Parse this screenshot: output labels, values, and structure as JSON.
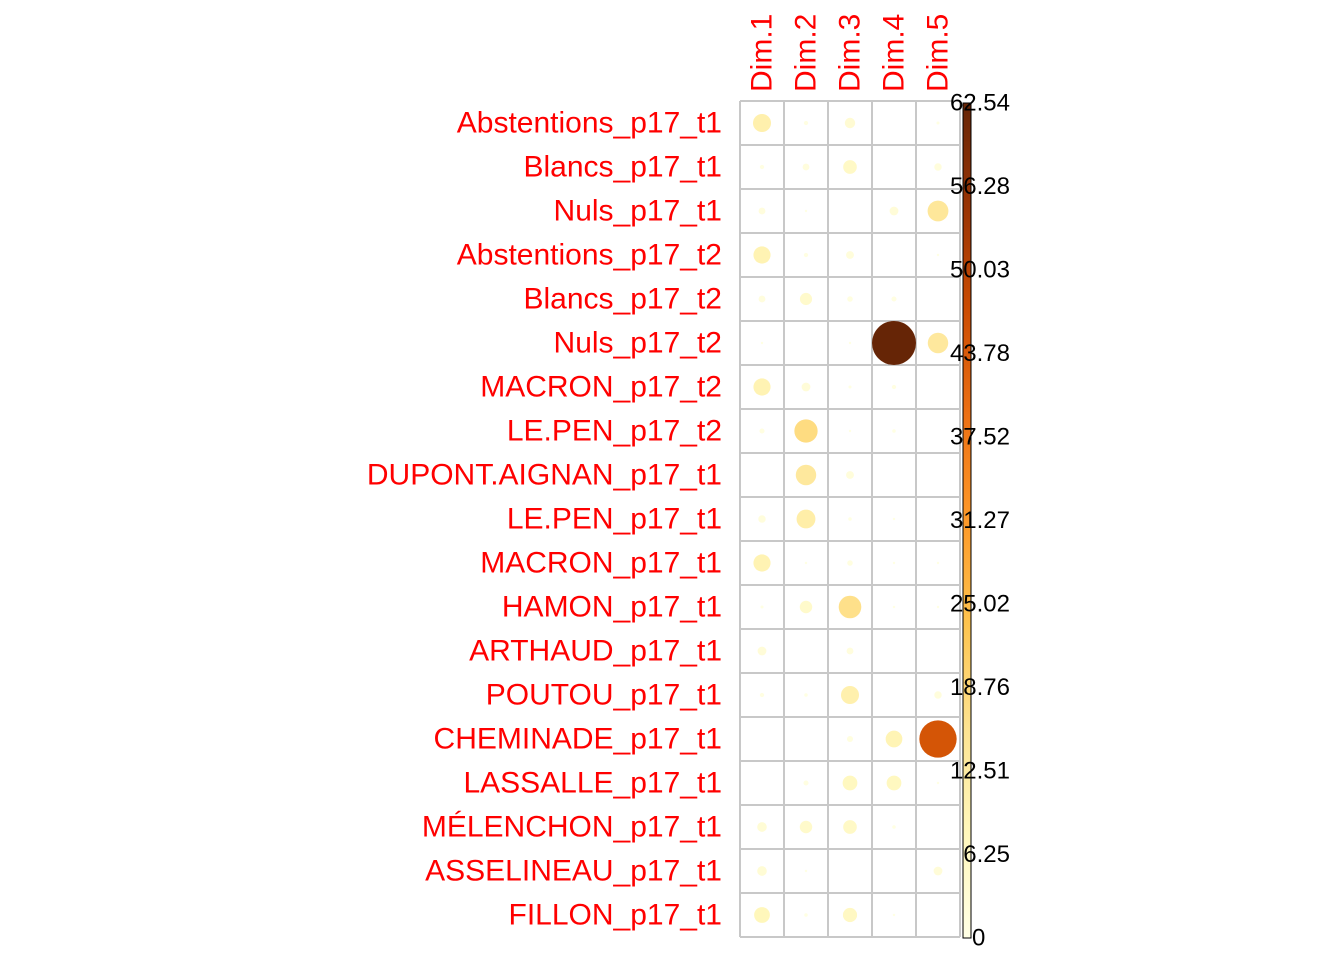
{
  "chart_data": {
    "type": "heatmap",
    "style": "corrplot-circle",
    "rows": [
      "Abstentions_p17_t1",
      "Blancs_p17_t1",
      "Nuls_p17_t1",
      "Abstentions_p17_t2",
      "Blancs_p17_t2",
      "Nuls_p17_t2",
      "MACRON_p17_t2",
      "LE.PEN_p17_t2",
      "DUPONT.AIGNAN_p17_t1",
      "LE.PEN_p17_t1",
      "MACRON_p17_t1",
      "HAMON_p17_t1",
      "ARTHAUD_p17_t1",
      "POUTOU_p17_t1",
      "CHEMINADE_p17_t1",
      "LASSALLE_p17_t1",
      "MÉLENCHON_p17_t1",
      "ASSELINEAU_p17_t1",
      "FILLON_p17_t1"
    ],
    "columns": [
      "Dim.1",
      "Dim.2",
      "Dim.3",
      "Dim.4",
      "Dim.5"
    ],
    "values": [
      [
        10.5,
        0.6,
        3.5,
        0.0,
        0.3
      ],
      [
        0.6,
        1.5,
        6.0,
        0.0,
        1.8
      ],
      [
        1.5,
        0.1,
        0.0,
        2.5,
        14.0
      ],
      [
        9.5,
        0.6,
        2.0,
        0.0,
        0.2
      ],
      [
        1.5,
        4.8,
        1.0,
        0.8,
        0.0
      ],
      [
        0.1,
        0.0,
        0.1,
        62.54,
        13.5
      ],
      [
        9.5,
        2.5,
        0.3,
        0.6,
        0.0
      ],
      [
        0.8,
        17.5,
        0.1,
        0.4,
        0.0
      ],
      [
        0.0,
        13.5,
        2.0,
        0.0,
        0.0
      ],
      [
        1.8,
        11.5,
        0.4,
        0.2,
        0.0
      ],
      [
        9.5,
        0.2,
        1.0,
        0.1,
        0.1
      ],
      [
        0.3,
        5.0,
        16.5,
        0.2,
        0.1
      ],
      [
        2.5,
        0.0,
        1.5,
        0.0,
        0.0
      ],
      [
        0.6,
        0.4,
        10.5,
        0.0,
        1.8
      ],
      [
        0.0,
        0.0,
        1.2,
        9.0,
        45.0
      ],
      [
        0.0,
        0.8,
        7.0,
        7.0,
        0.2
      ],
      [
        3.0,
        5.0,
        6.0,
        0.4,
        0.0
      ],
      [
        3.0,
        0.2,
        0.0,
        0.0,
        2.5
      ],
      [
        8.0,
        0.4,
        6.5,
        0.2,
        0.0
      ]
    ],
    "colorbar": {
      "min": 0,
      "max": 62.54,
      "ticks": [
        "0",
        "6.25",
        "12.51",
        "18.76",
        "25.02",
        "31.27",
        "37.52",
        "43.78",
        "50.03",
        "56.28",
        "62.54"
      ],
      "colors": [
        "#FFFFE5",
        "#FFF7BC",
        "#FEE391",
        "#FEC44F",
        "#FE9929",
        "#EC7014",
        "#CC4C02",
        "#993404",
        "#662506"
      ]
    },
    "label_color": "#FF0000",
    "grid_color": "#C8C8C8"
  }
}
